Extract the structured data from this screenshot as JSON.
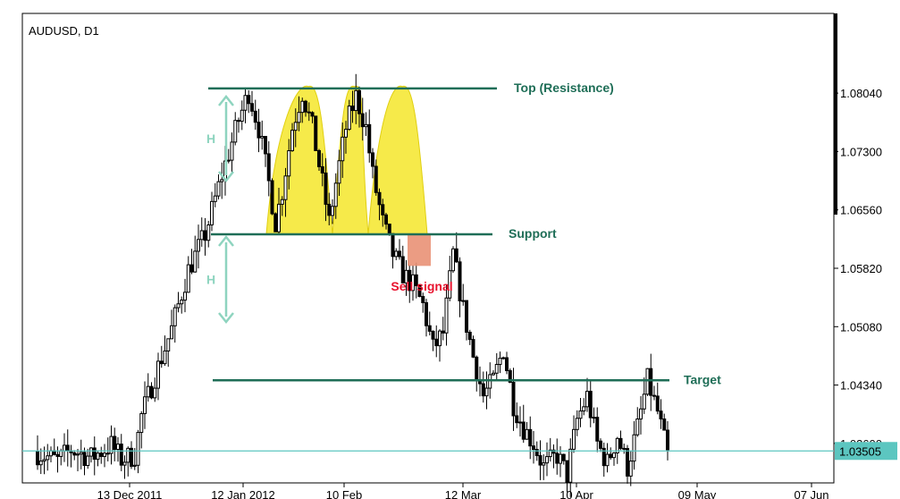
{
  "chart_data": {
    "type": "candlestick",
    "symbol_label": "AUDUSD, D1",
    "x_ticks": [
      "13 Dec 2011",
      "12 Jan 2012",
      "10 Feb",
      "12 Mar",
      "10 Apr",
      "09 May",
      "07 Jun"
    ],
    "y_ticks": [
      "1.08040",
      "1.07300",
      "1.06560",
      "1.05820",
      "1.05080",
      "1.04340",
      "1.03600"
    ],
    "y_range": [
      1.031,
      1.0905
    ],
    "current_price": "1.03505",
    "levels": {
      "top": {
        "label": "Top (Resistance)",
        "value": 1.081
      },
      "support": {
        "label": "Support",
        "value": 1.0625
      },
      "target": {
        "label": "Target",
        "value": 1.044
      }
    },
    "height_marker": "H",
    "signal_label": "Sell signal",
    "colors": {
      "level_line": "#1f6e57",
      "level_text": "#1f6e57",
      "pattern_fill": "#f5e62a",
      "signal_box": "#e99176",
      "signal_text": "#e8112d",
      "height_arrow": "#8ed4bf",
      "price_line": "#5cc6c0",
      "price_badge": "#5cc6c0",
      "candle_up": "#ffffff",
      "candle_down": "#000000"
    }
  }
}
